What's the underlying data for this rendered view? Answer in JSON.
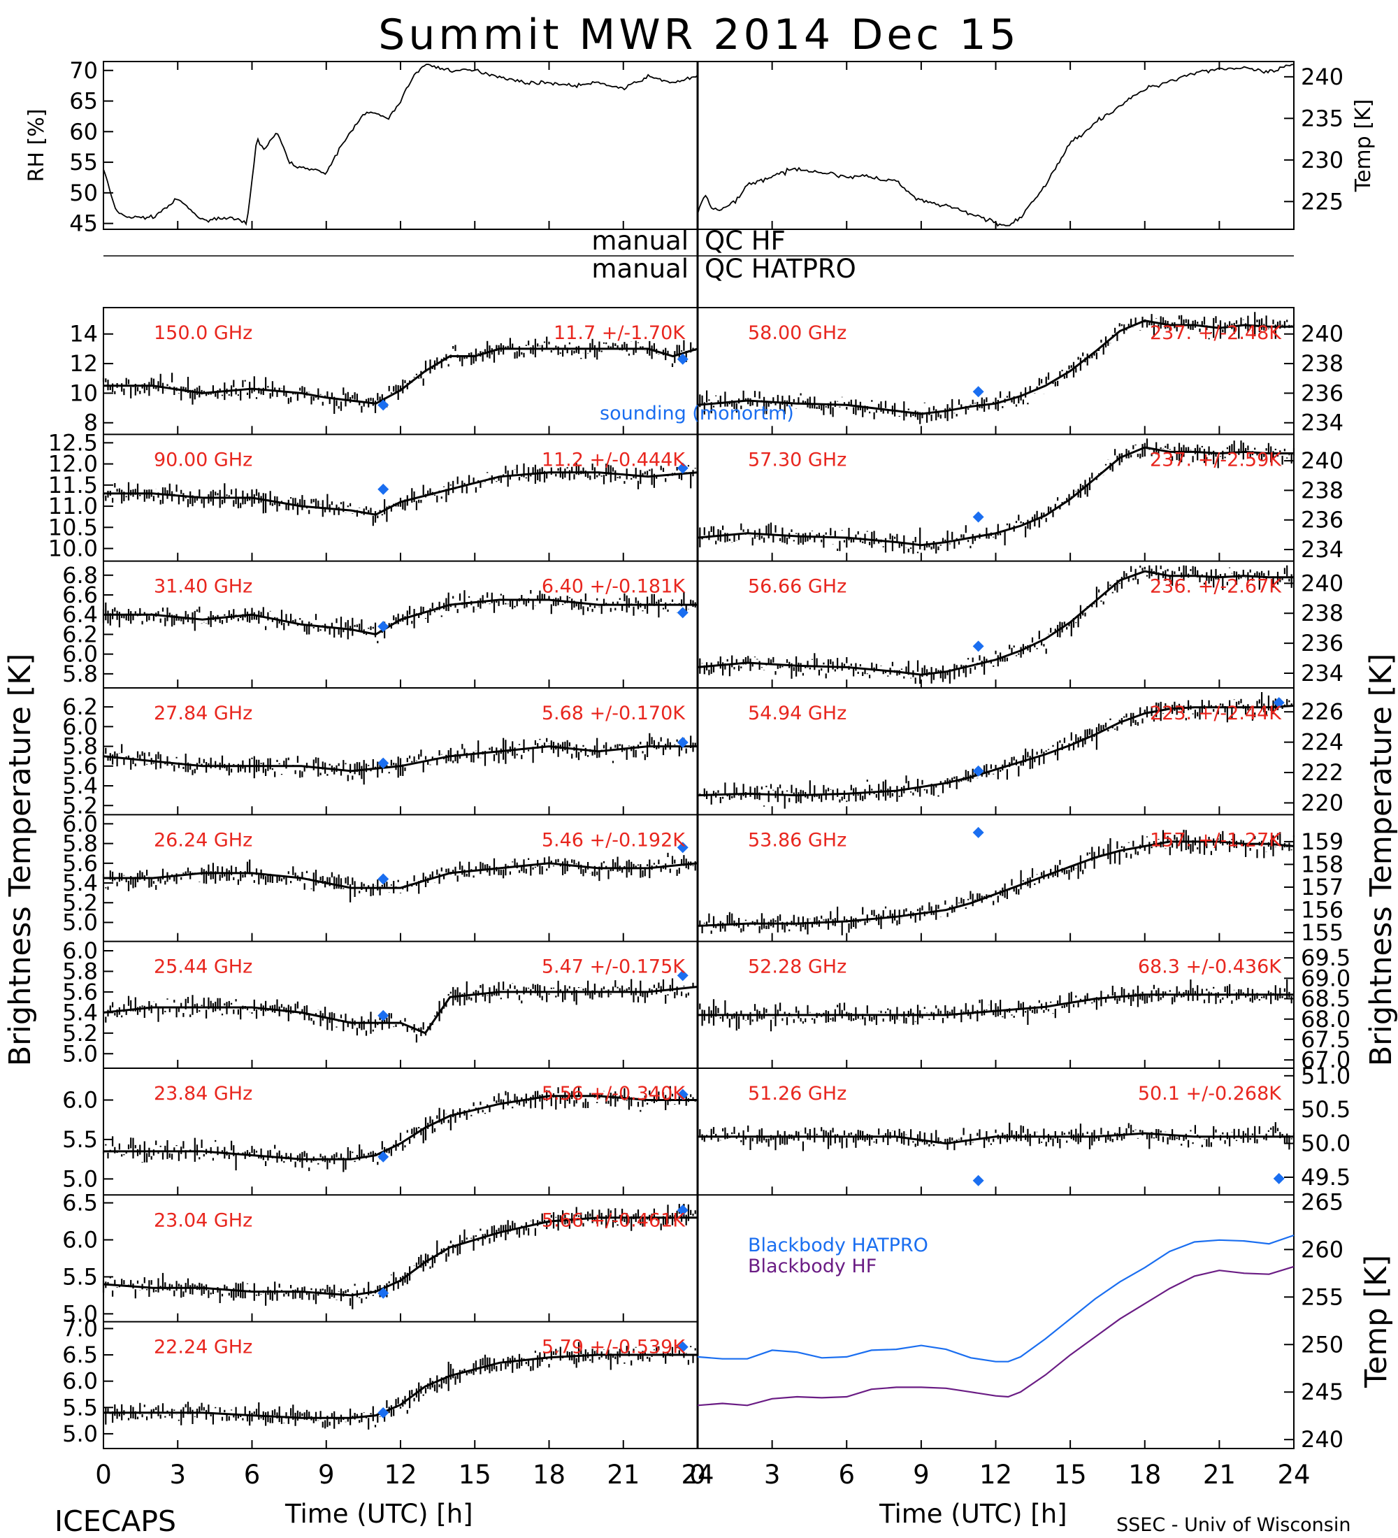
{
  "title": "Summit MWR 2014 Dec 15",
  "footer": {
    "left": "ICECAPS",
    "right": "SSEC - Univ of Wisconsin"
  },
  "xaxis": {
    "label": "Time (UTC) [h]",
    "ticks": [
      "0",
      "3",
      "6",
      "9",
      "12",
      "15",
      "18",
      "21",
      "24"
    ]
  },
  "ylabel_left": "Brightness Temperature [K]",
  "ylabel_right": "Brightness Temperature [K]",
  "qc": {
    "hf_label": "manual",
    "hf_text": "QC HF",
    "hatpro_label": "manual",
    "hatpro_text": "QC HATPRO"
  },
  "legend": {
    "sounding": "sounding (monortm)",
    "bb_hatpro": "Blackbody HATPRO",
    "bb_hf": "Blackbody HF"
  },
  "colors": {
    "black": "#000000",
    "red": "#e8261e",
    "blue": "#1a6ef0",
    "purple": "#6a1c84"
  },
  "chart_data": [
    {
      "type": "line",
      "name": "rh",
      "ylabel": "RH [%]",
      "xlim": [
        0,
        24
      ],
      "ylim": [
        44.5,
        71
      ],
      "yticks": [
        45,
        50,
        55,
        60,
        65,
        70
      ],
      "x": [
        0,
        0.5,
        1,
        2,
        3,
        4,
        5,
        5.8,
        6.2,
        6.5,
        7,
        7.5,
        8,
        8.5,
        9,
        9.5,
        10,
        10.5,
        11,
        11.5,
        12,
        12.5,
        13,
        14,
        15,
        16,
        17,
        18,
        19,
        20,
        21,
        22,
        23,
        24
      ],
      "values": [
        54,
        47,
        46,
        46,
        49,
        45.5,
        46,
        45,
        59,
        57,
        60,
        55,
        54,
        54,
        53,
        57,
        60,
        63,
        63,
        62,
        65,
        69,
        71,
        70,
        70,
        69,
        68,
        68,
        67.5,
        68,
        67,
        69,
        68,
        69
      ]
    },
    {
      "type": "line",
      "name": "temp",
      "ylabel": "Temp [K]",
      "xlim": [
        0,
        24
      ],
      "ylim": [
        222,
        241.5
      ],
      "yticks": [
        225,
        230,
        235,
        240
      ],
      "x": [
        0,
        0.3,
        0.6,
        1,
        1.5,
        2,
        3,
        4,
        5,
        6,
        7,
        7.5,
        8,
        8.5,
        9,
        10,
        11,
        12,
        12.5,
        13,
        14,
        15,
        16,
        17,
        18,
        19,
        20,
        21,
        22,
        23,
        24
      ],
      "values": [
        223.5,
        226,
        224,
        224,
        225,
        227,
        228,
        229,
        228.5,
        228,
        228,
        227.5,
        227.5,
        226,
        225,
        224.5,
        223.5,
        222.5,
        222,
        223,
        227,
        232,
        234.5,
        236.5,
        238.5,
        239.5,
        240.5,
        241,
        241,
        240.5,
        241.5
      ]
    },
    {
      "type": "scatter",
      "freq": "150.0 GHz",
      "stats": "11.7 +/-1.70K",
      "ylim": [
        7.5,
        15.5
      ],
      "yticks": [
        "8",
        "10",
        "12",
        "14"
      ],
      "x": [
        0,
        2,
        4,
        6,
        8,
        9,
        11,
        12,
        13,
        14,
        15,
        16,
        17,
        18,
        19,
        20,
        21,
        22,
        23,
        24
      ],
      "values": [
        10.5,
        10.5,
        10,
        10.3,
        10,
        9.7,
        9.3,
        10.2,
        11.5,
        12.5,
        12.5,
        13,
        13,
        13,
        13,
        13,
        13,
        13,
        12.5,
        13
      ],
      "sounding": [
        {
          "x": 11.3,
          "y": 9.2
        },
        {
          "x": 23.4,
          "y": 12.3
        }
      ]
    },
    {
      "type": "scatter",
      "freq": "90.00 GHz",
      "stats": "11.2 +/-0.444K",
      "ylim": [
        9.8,
        12.6
      ],
      "yticks": [
        "10.0",
        "10.5",
        "11.0",
        "11.5",
        "12.0",
        "12.5"
      ],
      "x": [
        0,
        2,
        4,
        6,
        8,
        10,
        11,
        12,
        14,
        16,
        18,
        20,
        22,
        24
      ],
      "values": [
        11.3,
        11.3,
        11.2,
        11.2,
        11,
        10.9,
        10.8,
        11.1,
        11.4,
        11.7,
        11.8,
        11.8,
        11.7,
        11.8
      ],
      "sounding": [
        {
          "x": 11.3,
          "y": 11.4
        },
        {
          "x": 23.4,
          "y": 11.9
        }
      ]
    },
    {
      "type": "scatter",
      "freq": "31.40 GHz",
      "stats": "6.40 +/-0.181K",
      "ylim": [
        5.7,
        6.9
      ],
      "yticks": [
        "5.8",
        "6.0",
        "6.2",
        "6.4",
        "6.6",
        "6.8"
      ],
      "x": [
        0,
        2,
        4,
        6,
        8,
        10,
        11,
        12,
        14,
        16,
        18,
        20,
        22,
        24
      ],
      "values": [
        6.4,
        6.4,
        6.35,
        6.4,
        6.3,
        6.25,
        6.2,
        6.35,
        6.5,
        6.55,
        6.55,
        6.5,
        6.5,
        6.5
      ],
      "sounding": [
        {
          "x": 11.3,
          "y": 6.28
        },
        {
          "x": 23.4,
          "y": 6.42
        }
      ]
    },
    {
      "type": "scatter",
      "freq": "27.84 GHz",
      "stats": "5.68 +/-0.170K",
      "ylim": [
        5.15,
        6.35
      ],
      "yticks": [
        "5.2",
        "5.4",
        "5.6",
        "5.8",
        "6.0",
        "6.2"
      ],
      "x": [
        0,
        2,
        4,
        6,
        8,
        10,
        12,
        14,
        16,
        18,
        20,
        22,
        24
      ],
      "values": [
        5.7,
        5.65,
        5.6,
        5.6,
        5.6,
        5.55,
        5.6,
        5.7,
        5.75,
        5.8,
        5.75,
        5.8,
        5.8
      ],
      "sounding": [
        {
          "x": 11.3,
          "y": 5.63
        },
        {
          "x": 23.4,
          "y": 5.84
        }
      ]
    },
    {
      "type": "scatter",
      "freq": "26.24 GHz",
      "stats": "5.46 +/-0.192K",
      "ylim": [
        4.85,
        6.05
      ],
      "yticks": [
        "5.0",
        "5.2",
        "5.4",
        "5.6",
        "5.8",
        "6.0"
      ],
      "x": [
        0,
        2,
        4,
        6,
        8,
        10,
        12,
        14,
        16,
        18,
        20,
        22,
        24
      ],
      "values": [
        5.45,
        5.45,
        5.5,
        5.5,
        5.45,
        5.35,
        5.35,
        5.5,
        5.55,
        5.6,
        5.55,
        5.55,
        5.6
      ],
      "sounding": [
        {
          "x": 11.3,
          "y": 5.44
        },
        {
          "x": 23.4,
          "y": 5.76
        }
      ]
    },
    {
      "type": "scatter",
      "freq": "25.44 GHz",
      "stats": "5.47 +/-0.175K",
      "ylim": [
        4.9,
        6.05
      ],
      "yticks": [
        "5.0",
        "5.2",
        "5.4",
        "5.6",
        "5.8",
        "6.0"
      ],
      "x": [
        0,
        2,
        4,
        6,
        8,
        10,
        12,
        13,
        14,
        16,
        18,
        20,
        22,
        24
      ],
      "values": [
        5.4,
        5.45,
        5.45,
        5.45,
        5.4,
        5.3,
        5.3,
        5.2,
        5.55,
        5.6,
        5.6,
        5.6,
        5.6,
        5.65
      ],
      "sounding": [
        {
          "x": 11.3,
          "y": 5.37
        },
        {
          "x": 23.4,
          "y": 5.76
        }
      ]
    },
    {
      "type": "scatter",
      "freq": "23.84 GHz",
      "stats": "5.56 +/-0.340K",
      "ylim": [
        4.85,
        6.35
      ],
      "yticks": [
        "5.0",
        "5.5",
        "6.0"
      ],
      "x": [
        0,
        2,
        4,
        6,
        8,
        10,
        11,
        12,
        13,
        14,
        16,
        18,
        20,
        22,
        24
      ],
      "values": [
        5.35,
        5.35,
        5.35,
        5.3,
        5.25,
        5.25,
        5.3,
        5.45,
        5.65,
        5.8,
        5.95,
        6.05,
        6.05,
        6.0,
        6.0
      ],
      "sounding": [
        {
          "x": 11.3,
          "y": 5.28
        },
        {
          "x": 23.4,
          "y": 6.07
        }
      ]
    },
    {
      "type": "scatter",
      "freq": "23.04 GHz",
      "stats": "5.66 +/-0.461K",
      "ylim": [
        4.95,
        6.55
      ],
      "yticks": [
        "5.0",
        "5.5",
        "6.0",
        "6.5"
      ],
      "x": [
        0,
        2,
        4,
        6,
        8,
        10,
        11,
        12,
        13,
        14,
        16,
        18,
        20,
        22,
        24
      ],
      "values": [
        5.4,
        5.35,
        5.35,
        5.3,
        5.3,
        5.25,
        5.3,
        5.45,
        5.7,
        5.9,
        6.1,
        6.25,
        6.3,
        6.3,
        6.3
      ],
      "sounding": [
        {
          "x": 11.3,
          "y": 5.28
        },
        {
          "x": 23.4,
          "y": 6.4
        }
      ]
    },
    {
      "type": "scatter",
      "freq": "22.24 GHz",
      "stats": "5.79 +/-0.539K",
      "ylim": [
        4.8,
        7.05
      ],
      "yticks": [
        "5.0",
        "5.5",
        "6.0",
        "6.5",
        "7.0"
      ],
      "x": [
        0,
        2,
        4,
        6,
        8,
        10,
        11,
        12,
        13,
        14,
        16,
        18,
        20,
        22,
        24
      ],
      "values": [
        5.4,
        5.4,
        5.4,
        5.35,
        5.3,
        5.3,
        5.35,
        5.55,
        5.9,
        6.1,
        6.35,
        6.45,
        6.5,
        6.5,
        6.5
      ],
      "sounding": [
        {
          "x": 11.3,
          "y": 5.4
        },
        {
          "x": 23.4,
          "y": 6.65
        }
      ]
    },
    {
      "type": "scatter",
      "freq": "58.00 GHz",
      "stats": "237. +/-2.48K",
      "ylim": [
        233.5,
        241.5
      ],
      "yticks": [
        "234",
        "236",
        "238",
        "240"
      ],
      "x": [
        0,
        2,
        4,
        6,
        8,
        9,
        10,
        11,
        12,
        13,
        14,
        15,
        16,
        17,
        18,
        19,
        20,
        21,
        22,
        23,
        24
      ],
      "values": [
        235.2,
        235.5,
        235.3,
        235.2,
        234.8,
        234.6,
        234.8,
        235.1,
        235.3,
        235.8,
        236.5,
        237.5,
        238.8,
        240.2,
        240.9,
        240.6,
        240.6,
        240.4,
        240.6,
        240.5,
        240.5
      ],
      "sounding": [
        {
          "x": 11.3,
          "y": 236.1
        }
      ]
    },
    {
      "type": "scatter",
      "freq": "57.30 GHz",
      "stats": "237. +/-2.59K",
      "ylim": [
        233.5,
        241.5
      ],
      "yticks": [
        "234",
        "236",
        "238",
        "240"
      ],
      "x": [
        0,
        2,
        4,
        6,
        8,
        9,
        10,
        11,
        12,
        13,
        14,
        15,
        16,
        17,
        18,
        19,
        20,
        21,
        22,
        23,
        24
      ],
      "values": [
        234.8,
        235.1,
        234.9,
        234.8,
        234.5,
        234.3,
        234.5,
        234.8,
        235.1,
        235.6,
        236.3,
        237.4,
        238.8,
        240.2,
        240.9,
        240.6,
        240.6,
        240.5,
        240.6,
        240.5,
        240.5
      ],
      "sounding": [
        {
          "x": 11.3,
          "y": 236.2
        }
      ]
    },
    {
      "type": "scatter",
      "freq": "56.66 GHz",
      "stats": "236. +/-2.67K",
      "ylim": [
        233.3,
        241.2
      ],
      "yticks": [
        "234",
        "236",
        "238",
        "240"
      ],
      "x": [
        0,
        2,
        4,
        6,
        8,
        9,
        10,
        11,
        12,
        13,
        14,
        15,
        16,
        17,
        18,
        19,
        20,
        21,
        22,
        23,
        24
      ],
      "values": [
        234.4,
        234.7,
        234.5,
        234.4,
        234.1,
        233.9,
        234.1,
        234.5,
        234.9,
        235.5,
        236.3,
        237.4,
        238.8,
        240.2,
        240.8,
        240.5,
        240.5,
        240.4,
        240.5,
        240.4,
        240.4
      ],
      "sounding": [
        {
          "x": 11.3,
          "y": 235.8
        }
      ]
    },
    {
      "type": "scatter",
      "freq": "54.94 GHz",
      "stats": "223. +/-2.44K",
      "ylim": [
        219.5,
        227.3
      ],
      "yticks": [
        "220",
        "222",
        "224",
        "226"
      ],
      "x": [
        0,
        2,
        4,
        6,
        8,
        10,
        11,
        12,
        13,
        14,
        15,
        16,
        17,
        18,
        19,
        20,
        21,
        22,
        23,
        24
      ],
      "values": [
        220.5,
        220.6,
        220.5,
        220.6,
        220.8,
        221.3,
        221.7,
        222.2,
        222.7,
        223.2,
        223.8,
        224.5,
        225.3,
        225.9,
        226.2,
        226.3,
        226.3,
        226.3,
        226.3,
        226.4
      ],
      "sounding": [
        {
          "x": 11.3,
          "y": 222.1
        },
        {
          "x": 23.4,
          "y": 226.6
        }
      ]
    },
    {
      "type": "scatter",
      "freq": "53.86 GHz",
      "stats": "157. +/-1.27K",
      "ylim": [
        154.8,
        160
      ],
      "yticks": [
        "155",
        "156",
        "157",
        "158",
        "159"
      ],
      "x": [
        0,
        2,
        4,
        6,
        8,
        10,
        11,
        12,
        13,
        14,
        15,
        16,
        17,
        18,
        19,
        20,
        21,
        22,
        23,
        24
      ],
      "values": [
        155.3,
        155.4,
        155.4,
        155.5,
        155.7,
        156.0,
        156.3,
        156.7,
        157.1,
        157.5,
        157.9,
        158.3,
        158.6,
        158.8,
        159.0,
        159.0,
        159.0,
        158.9,
        158.9,
        158.8
      ],
      "sounding": [
        {
          "x": 11.3,
          "y": 159.4
        }
      ]
    },
    {
      "type": "scatter",
      "freq": "52.28 GHz",
      "stats": "68.3 +/-0.436K",
      "ylim": [
        66.9,
        69.8
      ],
      "yticks": [
        "67.0",
        "67.5",
        "68.0",
        "68.5",
        "69.0",
        "69.5"
      ],
      "x": [
        0,
        2,
        4,
        6,
        8,
        10,
        12,
        14,
        16,
        18,
        20,
        22,
        24
      ],
      "values": [
        68.1,
        68.1,
        68.1,
        68.1,
        68.1,
        68.1,
        68.2,
        68.3,
        68.5,
        68.6,
        68.6,
        68.6,
        68.6
      ],
      "sounding": []
    },
    {
      "type": "scatter",
      "freq": "51.26 GHz",
      "stats": "50.1 +/-0.268K",
      "ylim": [
        49.3,
        51.05
      ],
      "yticks": [
        "49.5",
        "50.0",
        "50.5",
        "51.0"
      ],
      "x": [
        0,
        2,
        4,
        6,
        8,
        10,
        12,
        14,
        16,
        18,
        20,
        22,
        24
      ],
      "values": [
        50.1,
        50.1,
        50.1,
        50.1,
        50.1,
        50.0,
        50.1,
        50.1,
        50.1,
        50.15,
        50.1,
        50.1,
        50.1
      ],
      "sounding": [
        {
          "x": 11.3,
          "y": 49.45
        },
        {
          "x": 23.4,
          "y": 49.48
        }
      ]
    },
    {
      "type": "line",
      "name": "blackbody",
      "ylabel": "Temp [K]",
      "ylim": [
        239.5,
        265.3
      ],
      "yticks": [
        "240",
        "245",
        "250",
        "255",
        "260",
        "265"
      ],
      "series": [
        {
          "name": "Blackbody HATPRO",
          "x": [
            0,
            1,
            2,
            3,
            4,
            5,
            6,
            7,
            8,
            9,
            10,
            11,
            12,
            12.5,
            13,
            14,
            15,
            16,
            17,
            18,
            19,
            20,
            21,
            22,
            23,
            24
          ],
          "values": [
            248.7,
            248.5,
            248.5,
            249.4,
            249.2,
            248.6,
            248.7,
            249.4,
            249.5,
            249.9,
            249.5,
            248.6,
            248.2,
            248.2,
            248.7,
            250.6,
            252.7,
            254.8,
            256.6,
            258.1,
            259.8,
            260.8,
            261.0,
            260.9,
            260.6,
            261.5
          ]
        },
        {
          "name": "Blackbody HF",
          "x": [
            0,
            1,
            2,
            3,
            4,
            5,
            6,
            7,
            8,
            9,
            10,
            11,
            12,
            12.5,
            13,
            14,
            15,
            16,
            17,
            18,
            19,
            20,
            21,
            22,
            23,
            24
          ],
          "values": [
            243.6,
            243.8,
            243.6,
            244.3,
            244.5,
            244.4,
            244.5,
            245.3,
            245.5,
            245.5,
            245.4,
            245.0,
            244.6,
            244.5,
            245.0,
            246.8,
            248.9,
            250.8,
            252.7,
            254.3,
            255.9,
            257.2,
            257.8,
            257.5,
            257.4,
            258.2
          ]
        }
      ]
    }
  ]
}
